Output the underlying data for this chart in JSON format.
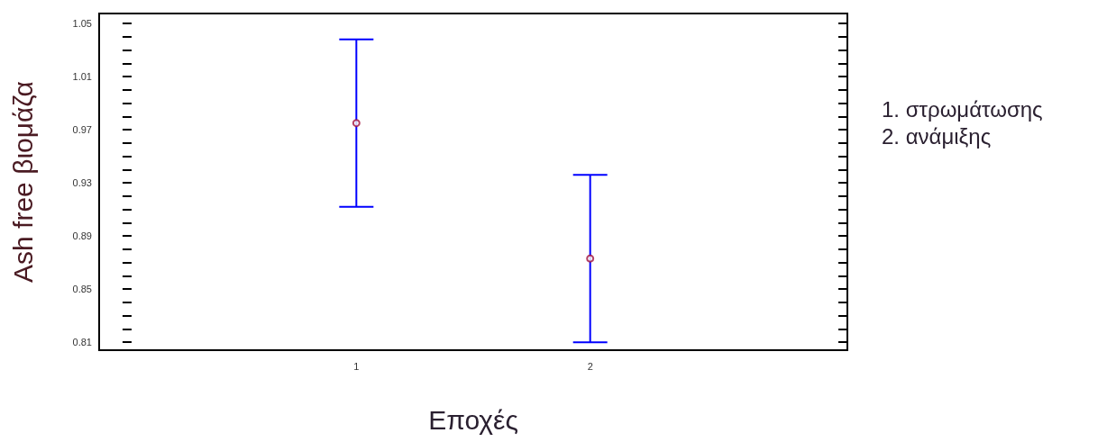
{
  "chart_data": {
    "type": "scatter",
    "xlabel": "Εποχές",
    "ylabel": "Ash free βιομάζα",
    "annotations": [
      "1. στρωμάτωσης",
      "2. ανάμιξης"
    ],
    "x": [
      1,
      2
    ],
    "series": [
      {
        "color": "#a0103c",
        "values": [
          0.975,
          0.873
        ],
        "errors": [
          0.063,
          0.063
        ]
      }
    ],
    "marker": "circle",
    "xlim": [
      -0.1,
      3.1
    ],
    "xticks": [
      1,
      2
    ],
    "ylim": [
      0.804,
      1.0575
    ],
    "yticks": [
      0.81,
      0.85,
      0.89,
      0.93,
      0.97,
      1.01,
      1.05
    ],
    "grid": false
  }
}
